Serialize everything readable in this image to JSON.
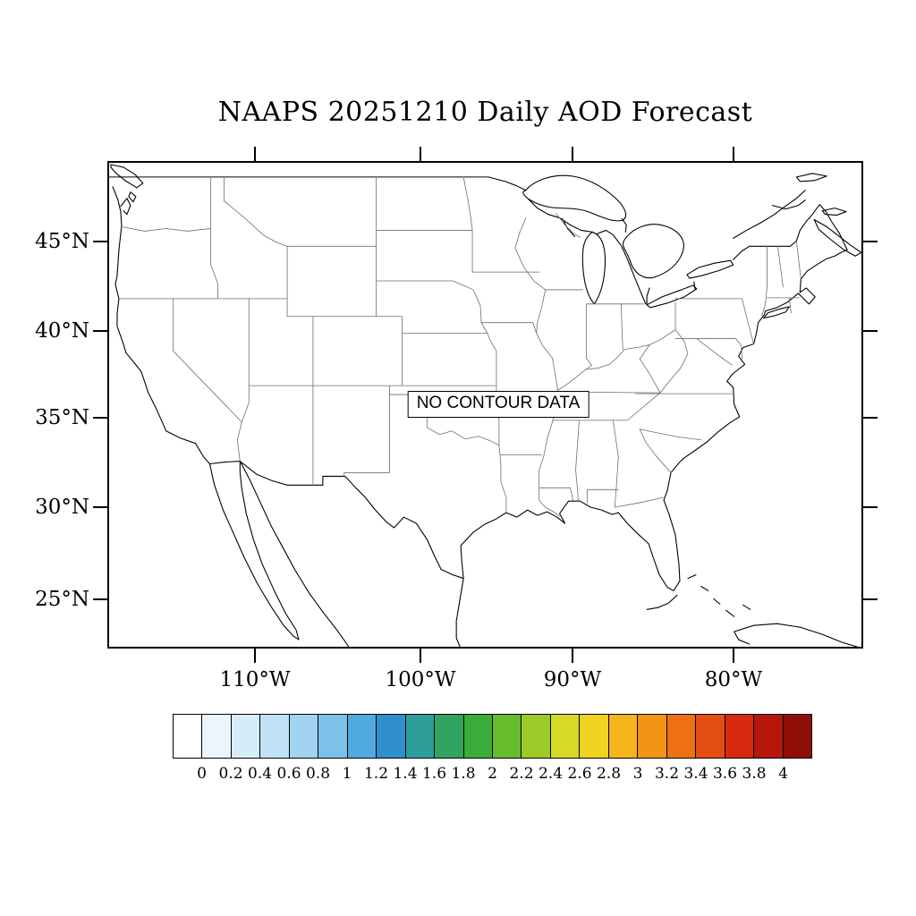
{
  "title": "NAAPS 20251210 Daily AOD Forecast",
  "map": {
    "no_data_label": "NO CONTOUR DATA",
    "lat_tick_labels": [
      "45°N",
      "40°N",
      "35°N",
      "30°N",
      "25°N"
    ],
    "lon_tick_labels": [
      "110°W",
      "100°W",
      "90°W",
      "80°W"
    ]
  },
  "colorbar": {
    "tick_labels": [
      "0",
      "0.2",
      "0.4",
      "0.6",
      "0.8",
      "1",
      "1.2",
      "1.4",
      "1.6",
      "1.8",
      "2",
      "2.2",
      "2.4",
      "2.6",
      "2.8",
      "3",
      "3.2",
      "3.4",
      "3.6",
      "3.8",
      "4"
    ],
    "cell_colors": [
      "#ffffff",
      "#eaf6fc",
      "#d6edf9",
      "#bfe2f5",
      "#a1d4f0",
      "#7cc2e8",
      "#51aadd",
      "#2f8fcc",
      "#2e9e9a",
      "#2fa461",
      "#3aad3a",
      "#65bc2c",
      "#9ccb28",
      "#d6d926",
      "#f0d222",
      "#f5b51d",
      "#f29418",
      "#ee7214",
      "#e54e11",
      "#d6290e",
      "#b5170b",
      "#8f0e08"
    ],
    "range": {
      "min": 0,
      "max": 4,
      "step": 0.2
    }
  }
}
